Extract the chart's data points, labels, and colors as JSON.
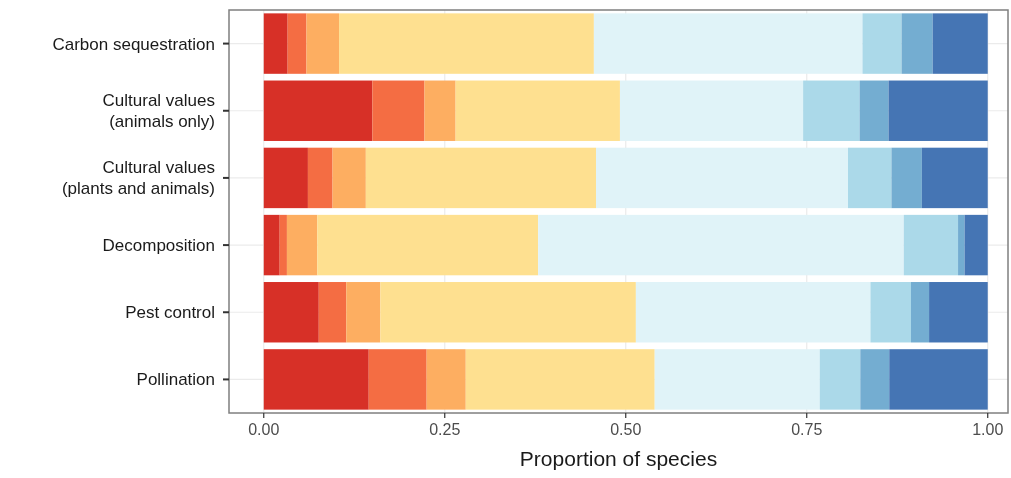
{
  "chart_data": {
    "type": "bar",
    "orientation": "horizontal",
    "stacked": true,
    "xlabel": "Proportion of species",
    "categories": [
      "Carbon sequestration",
      "Cultural values\n(animals only)",
      "Cultural values\n(plants and animals)",
      "Decomposition",
      "Pest control",
      "Pollination"
    ],
    "series": [
      {
        "color": "#d73027",
        "values": [
          0.033,
          0.15,
          0.061,
          0.022,
          0.076,
          0.145
        ]
      },
      {
        "color": "#f46d43",
        "values": [
          0.026,
          0.072,
          0.034,
          0.01,
          0.038,
          0.08
        ]
      },
      {
        "color": "#fdae61",
        "values": [
          0.045,
          0.043,
          0.046,
          0.042,
          0.047,
          0.054
        ]
      },
      {
        "color": "#fee090",
        "values": [
          0.352,
          0.227,
          0.318,
          0.305,
          0.353,
          0.261
        ]
      },
      {
        "color": "#e0f3f8",
        "values": [
          0.371,
          0.253,
          0.348,
          0.505,
          0.324,
          0.228
        ]
      },
      {
        "color": "#abd9e9",
        "values": [
          0.054,
          0.078,
          0.06,
          0.075,
          0.056,
          0.056
        ]
      },
      {
        "color": "#74add1",
        "values": [
          0.043,
          0.04,
          0.042,
          0.009,
          0.025,
          0.04
        ]
      },
      {
        "color": "#4575b4",
        "values": [
          0.076,
          0.137,
          0.091,
          0.032,
          0.081,
          0.136
        ]
      }
    ],
    "xlim": [
      -0.048,
      1.028
    ],
    "xticks": [
      {
        "value": 0,
        "label": "0.00"
      },
      {
        "value": 0.25,
        "label": "0.25"
      },
      {
        "value": 0.5,
        "label": "0.50"
      },
      {
        "value": 0.75,
        "label": "0.75"
      },
      {
        "value": 1,
        "label": "1.00"
      }
    ],
    "grid": true
  }
}
